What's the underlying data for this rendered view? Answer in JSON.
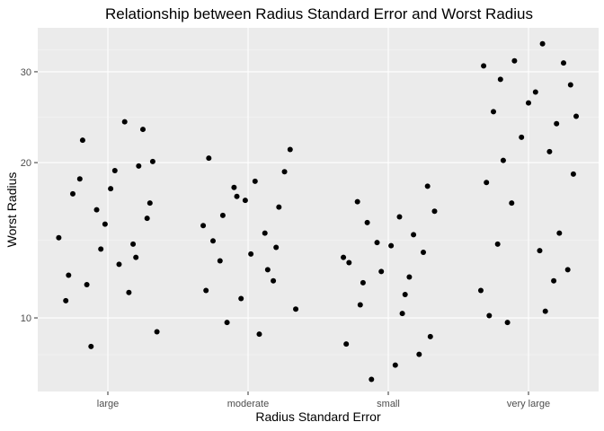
{
  "chart_data": {
    "type": "scatter",
    "title": "Relationship between Radius Standard Error and Worst Radius",
    "xlabel": "Radius Standard Error",
    "ylabel": "Worst Radius",
    "y_scale": "log10",
    "ylim": [
      7.2,
      36.5
    ],
    "categories": [
      "large",
      "moderate",
      "small",
      "very large"
    ],
    "y_ticks": [
      10,
      20,
      30
    ],
    "y_tick_labels": [
      "10",
      "20",
      "30"
    ],
    "grid": true,
    "legend": "none",
    "colors": {
      "panel": "#ebebeb",
      "grid_major": "#ffffff",
      "grid_minor": "#f5f5f5",
      "point": "#000000"
    },
    "points": [
      {
        "x": "large",
        "jitter": -0.18,
        "y": 22.1
      },
      {
        "x": "large",
        "jitter": 0.12,
        "y": 24.0
      },
      {
        "x": "large",
        "jitter": -0.05,
        "y": 13.6
      },
      {
        "x": "large",
        "jitter": 0.2,
        "y": 13.1
      },
      {
        "x": "large",
        "jitter": -0.25,
        "y": 17.4
      },
      {
        "x": "large",
        "jitter": 0.3,
        "y": 16.7
      },
      {
        "x": "large",
        "jitter": 0.05,
        "y": 19.3
      },
      {
        "x": "large",
        "jitter": -0.3,
        "y": 10.8
      },
      {
        "x": "large",
        "jitter": 0.15,
        "y": 11.2
      },
      {
        "x": "large",
        "jitter": -0.12,
        "y": 8.8
      },
      {
        "x": "large",
        "jitter": 0.35,
        "y": 9.4
      },
      {
        "x": "large",
        "jitter": -0.02,
        "y": 15.2
      },
      {
        "x": "large",
        "jitter": 0.25,
        "y": 23.2
      },
      {
        "x": "large",
        "jitter": -0.35,
        "y": 14.3
      },
      {
        "x": "large",
        "jitter": 0.08,
        "y": 12.7
      },
      {
        "x": "large",
        "jitter": -0.2,
        "y": 18.6
      },
      {
        "x": "large",
        "jitter": 0.32,
        "y": 20.1
      },
      {
        "x": "large",
        "jitter": -0.08,
        "y": 16.2
      },
      {
        "x": "large",
        "jitter": 0.18,
        "y": 13.9
      },
      {
        "x": "large",
        "jitter": -0.28,
        "y": 12.1
      },
      {
        "x": "large",
        "jitter": 0.02,
        "y": 17.8
      },
      {
        "x": "large",
        "jitter": 0.28,
        "y": 15.6
      },
      {
        "x": "large",
        "jitter": -0.15,
        "y": 11.6
      },
      {
        "x": "large",
        "jitter": 0.22,
        "y": 19.7
      },
      {
        "x": "moderate",
        "jitter": -0.28,
        "y": 20.4
      },
      {
        "x": "moderate",
        "jitter": 0.3,
        "y": 21.2
      },
      {
        "x": "moderate",
        "jitter": -0.1,
        "y": 17.9
      },
      {
        "x": "moderate",
        "jitter": 0.12,
        "y": 14.6
      },
      {
        "x": "moderate",
        "jitter": -0.2,
        "y": 12.9
      },
      {
        "x": "moderate",
        "jitter": 0.22,
        "y": 16.4
      },
      {
        "x": "moderate",
        "jitter": 0.02,
        "y": 13.3
      },
      {
        "x": "moderate",
        "jitter": -0.32,
        "y": 15.1
      },
      {
        "x": "moderate",
        "jitter": 0.18,
        "y": 11.8
      },
      {
        "x": "moderate",
        "jitter": -0.05,
        "y": 10.9
      },
      {
        "x": "moderate",
        "jitter": 0.34,
        "y": 10.4
      },
      {
        "x": "moderate",
        "jitter": -0.15,
        "y": 9.8
      },
      {
        "x": "moderate",
        "jitter": 0.08,
        "y": 9.3
      },
      {
        "x": "moderate",
        "jitter": -0.25,
        "y": 14.1
      },
      {
        "x": "moderate",
        "jitter": 0.26,
        "y": 19.2
      },
      {
        "x": "moderate",
        "jitter": -0.02,
        "y": 16.9
      },
      {
        "x": "moderate",
        "jitter": 0.14,
        "y": 12.4
      },
      {
        "x": "moderate",
        "jitter": -0.18,
        "y": 15.8
      },
      {
        "x": "moderate",
        "jitter": 0.05,
        "y": 18.4
      },
      {
        "x": "moderate",
        "jitter": -0.3,
        "y": 11.3
      },
      {
        "x": "moderate",
        "jitter": 0.2,
        "y": 13.7
      },
      {
        "x": "moderate",
        "jitter": -0.08,
        "y": 17.2
      },
      {
        "x": "small",
        "jitter": -0.3,
        "y": 8.9
      },
      {
        "x": "small",
        "jitter": -0.12,
        "y": 7.6
      },
      {
        "x": "small",
        "jitter": 0.05,
        "y": 8.1
      },
      {
        "x": "small",
        "jitter": 0.22,
        "y": 8.5
      },
      {
        "x": "small",
        "jitter": 0.3,
        "y": 9.2
      },
      {
        "x": "small",
        "jitter": -0.2,
        "y": 10.6
      },
      {
        "x": "small",
        "jitter": 0.12,
        "y": 11.1
      },
      {
        "x": "small",
        "jitter": -0.05,
        "y": 12.3
      },
      {
        "x": "small",
        "jitter": 0.25,
        "y": 13.4
      },
      {
        "x": "small",
        "jitter": -0.28,
        "y": 12.8
      },
      {
        "x": "small",
        "jitter": 0.18,
        "y": 14.5
      },
      {
        "x": "small",
        "jitter": -0.15,
        "y": 15.3
      },
      {
        "x": "small",
        "jitter": 0.02,
        "y": 13.8
      },
      {
        "x": "small",
        "jitter": 0.33,
        "y": 16.1
      },
      {
        "x": "small",
        "jitter": -0.22,
        "y": 16.8
      },
      {
        "x": "small",
        "jitter": 0.08,
        "y": 15.7
      },
      {
        "x": "small",
        "jitter": 0.28,
        "y": 18.0
      },
      {
        "x": "small",
        "jitter": -0.08,
        "y": 14.0
      },
      {
        "x": "small",
        "jitter": 0.15,
        "y": 12.0
      },
      {
        "x": "small",
        "jitter": -0.32,
        "y": 13.1
      },
      {
        "x": "small",
        "jitter": 0.1,
        "y": 10.2
      },
      {
        "x": "small",
        "jitter": -0.18,
        "y": 11.7
      },
      {
        "x": "very large",
        "jitter": -0.32,
        "y": 30.8
      },
      {
        "x": "very large",
        "jitter": -0.1,
        "y": 31.5
      },
      {
        "x": "very large",
        "jitter": 0.1,
        "y": 34.0
      },
      {
        "x": "very large",
        "jitter": 0.25,
        "y": 31.2
      },
      {
        "x": "very large",
        "jitter": 0.3,
        "y": 28.3
      },
      {
        "x": "very large",
        "jitter": -0.25,
        "y": 25.1
      },
      {
        "x": "very large",
        "jitter": 0.05,
        "y": 27.4
      },
      {
        "x": "very large",
        "jitter": -0.05,
        "y": 22.4
      },
      {
        "x": "very large",
        "jitter": 0.2,
        "y": 23.8
      },
      {
        "x": "very large",
        "jitter": -0.18,
        "y": 20.2
      },
      {
        "x": "very large",
        "jitter": 0.15,
        "y": 21.0
      },
      {
        "x": "very large",
        "jitter": -0.3,
        "y": 18.3
      },
      {
        "x": "very large",
        "jitter": 0.32,
        "y": 19.0
      },
      {
        "x": "very large",
        "jitter": -0.12,
        "y": 16.7
      },
      {
        "x": "very large",
        "jitter": 0.22,
        "y": 14.6
      },
      {
        "x": "very large",
        "jitter": -0.22,
        "y": 13.9
      },
      {
        "x": "very large",
        "jitter": 0.08,
        "y": 13.5
      },
      {
        "x": "very large",
        "jitter": 0.28,
        "y": 12.4
      },
      {
        "x": "very large",
        "jitter": -0.34,
        "y": 11.3
      },
      {
        "x": "very large",
        "jitter": 0.18,
        "y": 11.8
      },
      {
        "x": "very large",
        "jitter": -0.28,
        "y": 10.1
      },
      {
        "x": "very large",
        "jitter": 0.12,
        "y": 10.3
      },
      {
        "x": "very large",
        "jitter": -0.15,
        "y": 9.8
      },
      {
        "x": "very large",
        "jitter": 0.34,
        "y": 24.6
      },
      {
        "x": "very large",
        "jitter": 0.0,
        "y": 26.1
      },
      {
        "x": "very large",
        "jitter": -0.2,
        "y": 29.0
      }
    ]
  }
}
